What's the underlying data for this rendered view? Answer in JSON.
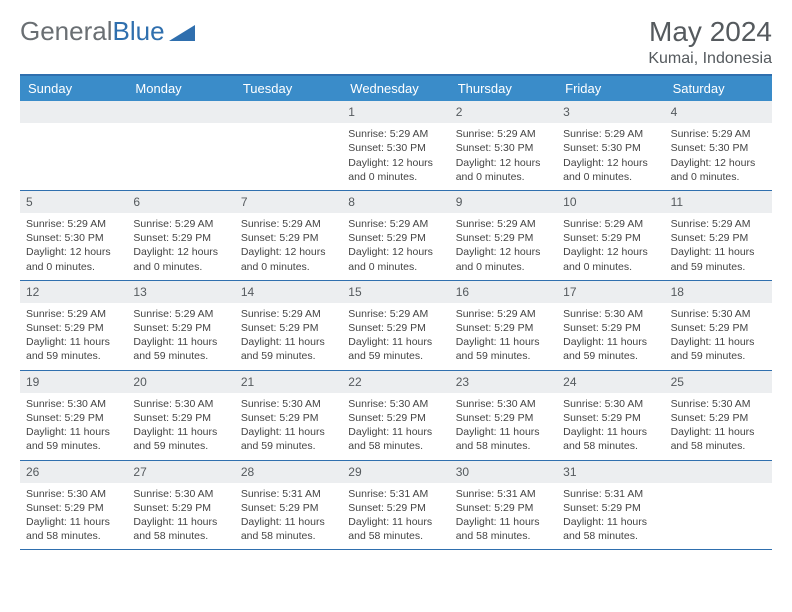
{
  "logo": {
    "text_gray": "General",
    "text_blue": "Blue"
  },
  "title": "May 2024",
  "location": "Kumai, Indonesia",
  "colors": {
    "header_bar": "#3a8cc9",
    "border": "#2f6fae",
    "daynum_bg": "#eceef0",
    "text": "#444444",
    "title_text": "#555a5e",
    "logo_gray": "#6a6f73",
    "logo_blue": "#2f6fae",
    "background": "#ffffff"
  },
  "day_labels": [
    "Sunday",
    "Monday",
    "Tuesday",
    "Wednesday",
    "Thursday",
    "Friday",
    "Saturday"
  ],
  "weeks": [
    [
      {
        "day": "",
        "sunrise": "",
        "sunset": "",
        "daylight": ""
      },
      {
        "day": "",
        "sunrise": "",
        "sunset": "",
        "daylight": ""
      },
      {
        "day": "",
        "sunrise": "",
        "sunset": "",
        "daylight": ""
      },
      {
        "day": "1",
        "sunrise": "5:29 AM",
        "sunset": "5:30 PM",
        "daylight": "12 hours and 0 minutes."
      },
      {
        "day": "2",
        "sunrise": "5:29 AM",
        "sunset": "5:30 PM",
        "daylight": "12 hours and 0 minutes."
      },
      {
        "day": "3",
        "sunrise": "5:29 AM",
        "sunset": "5:30 PM",
        "daylight": "12 hours and 0 minutes."
      },
      {
        "day": "4",
        "sunrise": "5:29 AM",
        "sunset": "5:30 PM",
        "daylight": "12 hours and 0 minutes."
      }
    ],
    [
      {
        "day": "5",
        "sunrise": "5:29 AM",
        "sunset": "5:30 PM",
        "daylight": "12 hours and 0 minutes."
      },
      {
        "day": "6",
        "sunrise": "5:29 AM",
        "sunset": "5:29 PM",
        "daylight": "12 hours and 0 minutes."
      },
      {
        "day": "7",
        "sunrise": "5:29 AM",
        "sunset": "5:29 PM",
        "daylight": "12 hours and 0 minutes."
      },
      {
        "day": "8",
        "sunrise": "5:29 AM",
        "sunset": "5:29 PM",
        "daylight": "12 hours and 0 minutes."
      },
      {
        "day": "9",
        "sunrise": "5:29 AM",
        "sunset": "5:29 PM",
        "daylight": "12 hours and 0 minutes."
      },
      {
        "day": "10",
        "sunrise": "5:29 AM",
        "sunset": "5:29 PM",
        "daylight": "12 hours and 0 minutes."
      },
      {
        "day": "11",
        "sunrise": "5:29 AM",
        "sunset": "5:29 PM",
        "daylight": "11 hours and 59 minutes."
      }
    ],
    [
      {
        "day": "12",
        "sunrise": "5:29 AM",
        "sunset": "5:29 PM",
        "daylight": "11 hours and 59 minutes."
      },
      {
        "day": "13",
        "sunrise": "5:29 AM",
        "sunset": "5:29 PM",
        "daylight": "11 hours and 59 minutes."
      },
      {
        "day": "14",
        "sunrise": "5:29 AM",
        "sunset": "5:29 PM",
        "daylight": "11 hours and 59 minutes."
      },
      {
        "day": "15",
        "sunrise": "5:29 AM",
        "sunset": "5:29 PM",
        "daylight": "11 hours and 59 minutes."
      },
      {
        "day": "16",
        "sunrise": "5:29 AM",
        "sunset": "5:29 PM",
        "daylight": "11 hours and 59 minutes."
      },
      {
        "day": "17",
        "sunrise": "5:30 AM",
        "sunset": "5:29 PM",
        "daylight": "11 hours and 59 minutes."
      },
      {
        "day": "18",
        "sunrise": "5:30 AM",
        "sunset": "5:29 PM",
        "daylight": "11 hours and 59 minutes."
      }
    ],
    [
      {
        "day": "19",
        "sunrise": "5:30 AM",
        "sunset": "5:29 PM",
        "daylight": "11 hours and 59 minutes."
      },
      {
        "day": "20",
        "sunrise": "5:30 AM",
        "sunset": "5:29 PM",
        "daylight": "11 hours and 59 minutes."
      },
      {
        "day": "21",
        "sunrise": "5:30 AM",
        "sunset": "5:29 PM",
        "daylight": "11 hours and 59 minutes."
      },
      {
        "day": "22",
        "sunrise": "5:30 AM",
        "sunset": "5:29 PM",
        "daylight": "11 hours and 58 minutes."
      },
      {
        "day": "23",
        "sunrise": "5:30 AM",
        "sunset": "5:29 PM",
        "daylight": "11 hours and 58 minutes."
      },
      {
        "day": "24",
        "sunrise": "5:30 AM",
        "sunset": "5:29 PM",
        "daylight": "11 hours and 58 minutes."
      },
      {
        "day": "25",
        "sunrise": "5:30 AM",
        "sunset": "5:29 PM",
        "daylight": "11 hours and 58 minutes."
      }
    ],
    [
      {
        "day": "26",
        "sunrise": "5:30 AM",
        "sunset": "5:29 PM",
        "daylight": "11 hours and 58 minutes."
      },
      {
        "day": "27",
        "sunrise": "5:30 AM",
        "sunset": "5:29 PM",
        "daylight": "11 hours and 58 minutes."
      },
      {
        "day": "28",
        "sunrise": "5:31 AM",
        "sunset": "5:29 PM",
        "daylight": "11 hours and 58 minutes."
      },
      {
        "day": "29",
        "sunrise": "5:31 AM",
        "sunset": "5:29 PM",
        "daylight": "11 hours and 58 minutes."
      },
      {
        "day": "30",
        "sunrise": "5:31 AM",
        "sunset": "5:29 PM",
        "daylight": "11 hours and 58 minutes."
      },
      {
        "day": "31",
        "sunrise": "5:31 AM",
        "sunset": "5:29 PM",
        "daylight": "11 hours and 58 minutes."
      },
      {
        "day": "",
        "sunrise": "",
        "sunset": "",
        "daylight": ""
      }
    ]
  ],
  "labels": {
    "sunrise_prefix": "Sunrise: ",
    "sunset_prefix": "Sunset: ",
    "daylight_prefix": "Daylight: "
  }
}
